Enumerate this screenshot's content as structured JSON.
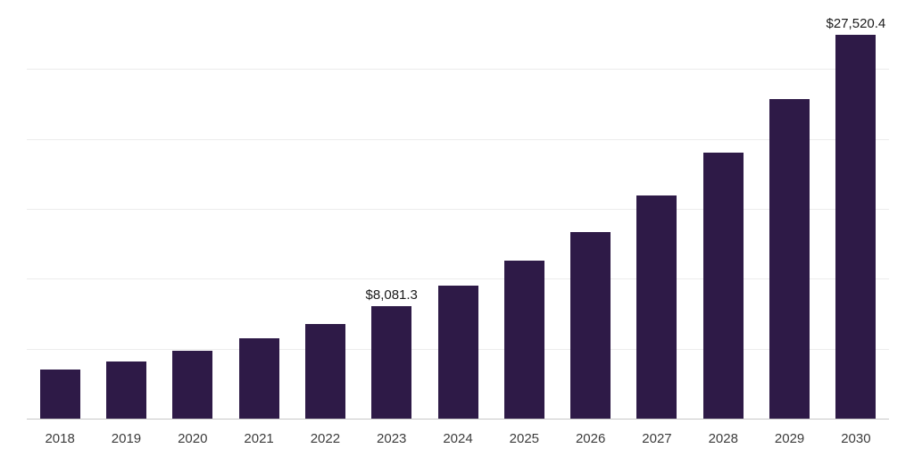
{
  "chart_data": {
    "type": "bar",
    "title": "",
    "xlabel": "",
    "ylabel": "",
    "categories": [
      "2018",
      "2019",
      "2020",
      "2021",
      "2022",
      "2023",
      "2024",
      "2025",
      "2026",
      "2027",
      "2028",
      "2029",
      "2030"
    ],
    "values": [
      3600,
      4150,
      4900,
      5800,
      6850,
      8081.3,
      9550,
      11350,
      13400,
      16000,
      19100,
      22900,
      27520.4
    ],
    "data_labels": [
      "",
      "",
      "",
      "",
      "",
      "$8,081.3",
      "",
      "",
      "",
      "",
      "",
      "",
      "$27,520.4"
    ],
    "bar_color": "#2E1A47",
    "ylim": [
      0,
      29500
    ],
    "grid_step": 5000,
    "grid": "horizontal",
    "legend_position": "none",
    "gridline_color": "#ececec",
    "baseline_color": "#c8c8c8"
  }
}
